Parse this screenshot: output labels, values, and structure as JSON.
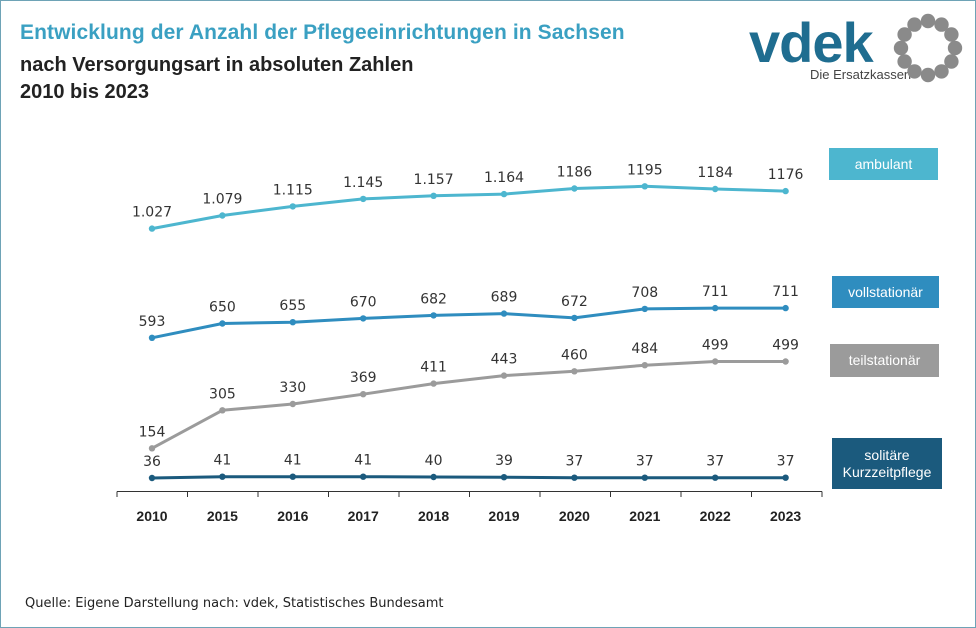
{
  "header": {
    "title": "Entwicklung der Anzahl der Pflegeeinrichtungen in Sachsen",
    "subtitle_line1": "nach Versorgungsart in absoluten Zahlen",
    "subtitle_line2": "2010 bis 2023"
  },
  "logo": {
    "wordmark": "vdek",
    "tagline": "Die Ersatzkassen",
    "color": "#1f6d90",
    "ring_color": "#8a8a8a"
  },
  "chart_data": {
    "type": "line",
    "categories": [
      "2010",
      "2015",
      "2016",
      "2017",
      "2018",
      "2019",
      "2020",
      "2021",
      "2022",
      "2023"
    ],
    "series": [
      {
        "name": "ambulant",
        "color": "#4db6cf",
        "values": [
          1027,
          1079,
          1115,
          1145,
          1157,
          1164,
          1186,
          1195,
          1184,
          1176
        ],
        "labels": [
          "1.027",
          "1.079",
          "1.115",
          "1.145",
          "1.157",
          "1.164",
          "1186",
          "1195",
          "1184",
          "1176"
        ]
      },
      {
        "name": "vollstationär",
        "color": "#2f8dbf",
        "values": [
          593,
          650,
          655,
          670,
          682,
          689,
          672,
          708,
          711,
          711
        ],
        "labels": [
          "593",
          "650",
          "655",
          "670",
          "682",
          "689",
          "672",
          "708",
          "711",
          "711"
        ]
      },
      {
        "name": "teilstationär",
        "color": "#9b9b9b",
        "values": [
          154,
          305,
          330,
          369,
          411,
          443,
          460,
          484,
          499,
          499
        ],
        "labels": [
          "154",
          "305",
          "330",
          "369",
          "411",
          "443",
          "460",
          "484",
          "499",
          "499"
        ]
      },
      {
        "name": "solitäre Kurzzeitpflege",
        "color": "#1b5a7d",
        "values": [
          36,
          41,
          41,
          41,
          40,
          39,
          37,
          37,
          37,
          37
        ],
        "labels": [
          "36",
          "41",
          "41",
          "41",
          "40",
          "39",
          "37",
          "37",
          "37",
          "37"
        ]
      }
    ],
    "legend": {
      "placement": "right",
      "entries": [
        {
          "text": "ambulant",
          "color": "#4db6cf"
        },
        {
          "text": "vollstationär",
          "color": "#2f8dbf"
        },
        {
          "text": "teilstationär",
          "color": "#9b9b9b"
        },
        {
          "line1": "solitäre",
          "line2": "Kurzzeitpflege",
          "color": "#1b5a7d"
        }
      ]
    },
    "grid": false,
    "y_axis": "hidden"
  },
  "footer": {
    "source": "Quelle: Eigene Darstellung nach: vdek, Statistisches Bundesamt"
  }
}
